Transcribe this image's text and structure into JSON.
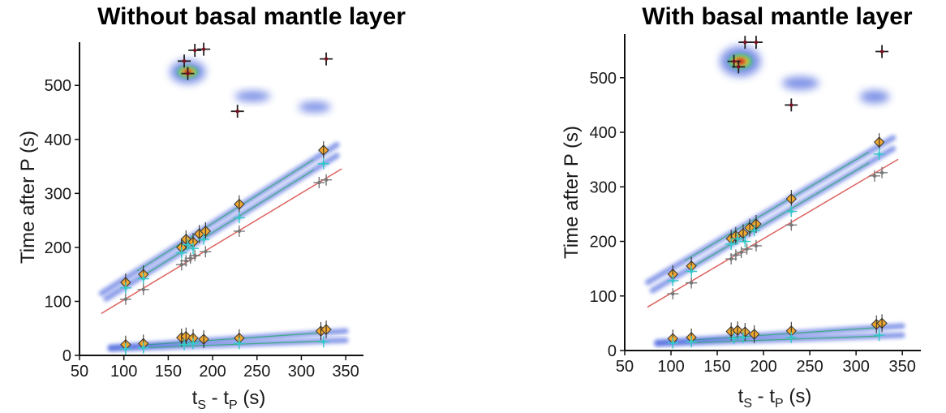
{
  "chart_data": [
    {
      "type": "scatter",
      "title": "Without basal mantle layer",
      "xlabel_main": "t",
      "xlabel_sub1": "S",
      "xlabel_mid": " - t",
      "xlabel_sub2": "P",
      "xlabel_end": " (s)",
      "ylabel": "Time after P (s)",
      "xlim": [
        50,
        370
      ],
      "ylim": [
        0,
        580
      ],
      "xticks": [
        50,
        100,
        150,
        200,
        250,
        300,
        350
      ],
      "yticks": [
        0,
        100,
        200,
        300,
        400,
        500
      ],
      "density_bands": [
        {
          "x0": 75,
          "y0": 115,
          "x1": 340,
          "y1": 390,
          "color": "#2a4bd7"
        },
        {
          "x0": 80,
          "y0": 105,
          "x1": 340,
          "y1": 370,
          "color": "#2a4bd7"
        },
        {
          "x0": 75,
          "y0": 78,
          "x1": 345,
          "y1": 345,
          "color": "#d9534f"
        },
        {
          "x0": 85,
          "y0": 15,
          "x1": 350,
          "y1": 45,
          "color": "#2a4bd7"
        },
        {
          "x0": 85,
          "y0": 12,
          "x1": 350,
          "y1": 28,
          "color": "#2a4bd7"
        }
      ],
      "density_blobs": [
        {
          "x": 172,
          "y": 525,
          "rx": 20,
          "ry": 22,
          "color": "#2a4bd7"
        },
        {
          "x": 245,
          "y": 480,
          "rx": 20,
          "ry": 10,
          "color": "#2a4bd7"
        },
        {
          "x": 315,
          "y": 460,
          "rx": 18,
          "ry": 10,
          "color": "#2a4bd7"
        }
      ],
      "series": [
        {
          "marker": "orange-diamond",
          "color": "#f0a830",
          "points": [
            [
              102,
              135
            ],
            [
              122,
              150
            ],
            [
              165,
              200
            ],
            [
              170,
              215
            ],
            [
              178,
              210
            ],
            [
              185,
              225
            ],
            [
              192,
              230
            ],
            [
              230,
              280
            ],
            [
              325,
              380
            ],
            [
              102,
              20
            ],
            [
              122,
              22
            ],
            [
              165,
              33
            ],
            [
              170,
              35
            ],
            [
              178,
              32
            ],
            [
              190,
              30
            ],
            [
              230,
              32
            ],
            [
              322,
              45
            ],
            [
              328,
              48
            ]
          ]
        },
        {
          "marker": "cyan-cross",
          "color": "#33c8c8",
          "points": [
            [
              102,
              125
            ],
            [
              122,
              142
            ],
            [
              165,
              190
            ],
            [
              172,
              205
            ],
            [
              178,
              198
            ],
            [
              190,
              215
            ],
            [
              230,
              255
            ],
            [
              325,
              355
            ],
            [
              102,
              12
            ],
            [
              122,
              14
            ],
            [
              168,
              20
            ],
            [
              178,
              22
            ],
            [
              230,
              22
            ],
            [
              325,
              25
            ]
          ]
        },
        {
          "marker": "grey-cross",
          "color": "#777777",
          "points": [
            [
              102,
              104
            ],
            [
              122,
              122
            ],
            [
              165,
              168
            ],
            [
              170,
              175
            ],
            [
              175,
              180
            ],
            [
              180,
              185
            ],
            [
              192,
              192
            ],
            [
              230,
              230
            ],
            [
              320,
              320
            ],
            [
              328,
              325
            ]
          ]
        },
        {
          "marker": "red-cross",
          "color": "#7a1020",
          "points": [
            [
              168,
              545
            ],
            [
              172,
              522
            ],
            [
              180,
              565
            ],
            [
              190,
              567
            ],
            [
              228,
              452
            ],
            [
              328,
              549
            ]
          ]
        }
      ]
    },
    {
      "type": "scatter",
      "title": "With basal mantle layer",
      "xlabel_main": "t",
      "xlabel_sub1": "S",
      "xlabel_mid": " - t",
      "xlabel_sub2": "P",
      "xlabel_end": " (s)",
      "ylabel": "Time after P (s)",
      "xlim": [
        50,
        370
      ],
      "ylim": [
        0,
        580
      ],
      "xticks": [
        50,
        100,
        150,
        200,
        250,
        300,
        350
      ],
      "yticks": [
        0,
        100,
        200,
        300,
        400,
        500
      ],
      "density_bands": [
        {
          "x0": 75,
          "y0": 125,
          "x1": 340,
          "y1": 390,
          "color": "#2a4bd7"
        },
        {
          "x0": 80,
          "y0": 110,
          "x1": 340,
          "y1": 370,
          "color": "#2a4bd7"
        },
        {
          "x0": 75,
          "y0": 80,
          "x1": 345,
          "y1": 350,
          "color": "#d9534f"
        },
        {
          "x0": 85,
          "y0": 15,
          "x1": 350,
          "y1": 45,
          "color": "#2a4bd7"
        },
        {
          "x0": 85,
          "y0": 12,
          "x1": 350,
          "y1": 28,
          "color": "#2a4bd7"
        }
      ],
      "density_blobs": [
        {
          "x": 175,
          "y": 530,
          "rx": 22,
          "ry": 28,
          "color": "#2a4bd7"
        },
        {
          "x": 240,
          "y": 490,
          "rx": 20,
          "ry": 12,
          "color": "#2a4bd7"
        },
        {
          "x": 320,
          "y": 465,
          "rx": 16,
          "ry": 12,
          "color": "#2a4bd7"
        }
      ],
      "series": [
        {
          "marker": "orange-diamond",
          "color": "#f0a830",
          "points": [
            [
              102,
              140
            ],
            [
              122,
              155
            ],
            [
              165,
              205
            ],
            [
              170,
              210
            ],
            [
              178,
              215
            ],
            [
              185,
              225
            ],
            [
              192,
              232
            ],
            [
              230,
              278
            ],
            [
              325,
              382
            ],
            [
              102,
              22
            ],
            [
              122,
              24
            ],
            [
              165,
              35
            ],
            [
              172,
              37
            ],
            [
              180,
              34
            ],
            [
              190,
              30
            ],
            [
              230,
              36
            ],
            [
              322,
              48
            ],
            [
              328,
              50
            ]
          ]
        },
        {
          "marker": "cyan-cross",
          "color": "#33c8c8",
          "points": [
            [
              102,
              128
            ],
            [
              122,
              145
            ],
            [
              165,
              195
            ],
            [
              172,
              205
            ],
            [
              180,
              200
            ],
            [
              190,
              220
            ],
            [
              230,
              255
            ],
            [
              325,
              360
            ],
            [
              102,
              14
            ],
            [
              122,
              16
            ],
            [
              168,
              22
            ],
            [
              178,
              24
            ],
            [
              230,
              24
            ],
            [
              325,
              28
            ]
          ]
        },
        {
          "marker": "grey-cross",
          "color": "#777777",
          "points": [
            [
              102,
              104
            ],
            [
              122,
              124
            ],
            [
              165,
              168
            ],
            [
              170,
              175
            ],
            [
              176,
              180
            ],
            [
              182,
              186
            ],
            [
              192,
              192
            ],
            [
              230,
              230
            ],
            [
              320,
              320
            ],
            [
              328,
              326
            ]
          ]
        },
        {
          "marker": "red-cross",
          "color": "#7a1020",
          "points": [
            [
              168,
              530
            ],
            [
              173,
              520
            ],
            [
              180,
              565
            ],
            [
              192,
              565
            ],
            [
              230,
              450
            ],
            [
              328,
              548
            ]
          ]
        }
      ]
    }
  ]
}
